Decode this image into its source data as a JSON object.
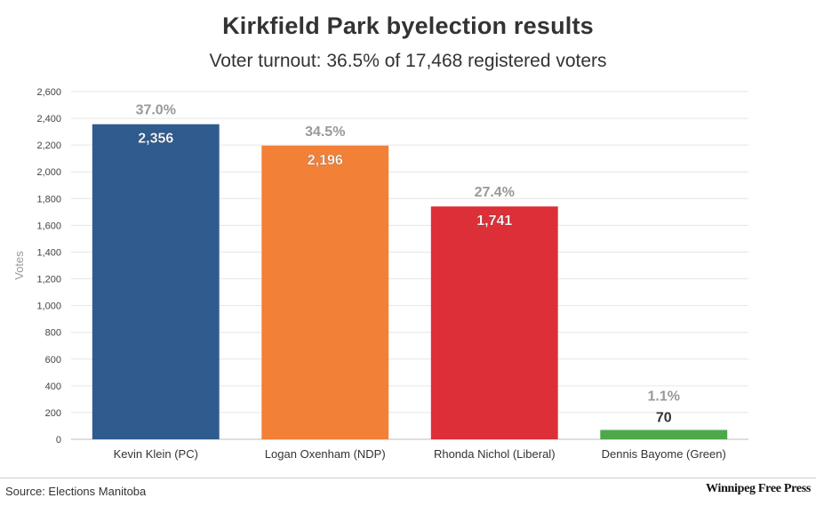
{
  "header": {
    "title": "Kirkfield Park byelection results",
    "subtitle": "Voter turnout: 36.5% of 17,468 registered voters"
  },
  "footer": {
    "source": "Source: Elections Manitoba",
    "brand": "Winnipeg Free Press"
  },
  "chart_data": {
    "type": "bar",
    "title": "Kirkfield Park byelection results",
    "subtitle": "Voter turnout: 36.5% of 17,468 registered voters",
    "xlabel": "",
    "ylabel": "Votes",
    "ylim": [
      0,
      2600
    ],
    "yticks": [
      0,
      200,
      400,
      600,
      800,
      1000,
      1200,
      1400,
      1600,
      1800,
      2000,
      2200,
      2400,
      2600
    ],
    "ytick_labels": [
      "0",
      "200",
      "400",
      "600",
      "800",
      "1,000",
      "1,200",
      "1,400",
      "1,600",
      "1,800",
      "2,000",
      "2,200",
      "2,400",
      "2,600"
    ],
    "grid": true,
    "legend": "none",
    "categories": [
      "Kevin Klein (PC)",
      "Logan Oxenham (NDP)",
      "Rhonda Nichol (Liberal)",
      "Dennis Bayome (Green)"
    ],
    "values": [
      2356,
      2196,
      1741,
      70
    ],
    "value_labels": [
      "2,356",
      "2,196",
      "1,741",
      "70"
    ],
    "percent_labels": [
      "37.0%",
      "34.5%",
      "27.4%",
      "1.1%"
    ],
    "colors": [
      "#2f5b8f",
      "#f28037",
      "#dc2f38",
      "#4ea84b"
    ]
  }
}
